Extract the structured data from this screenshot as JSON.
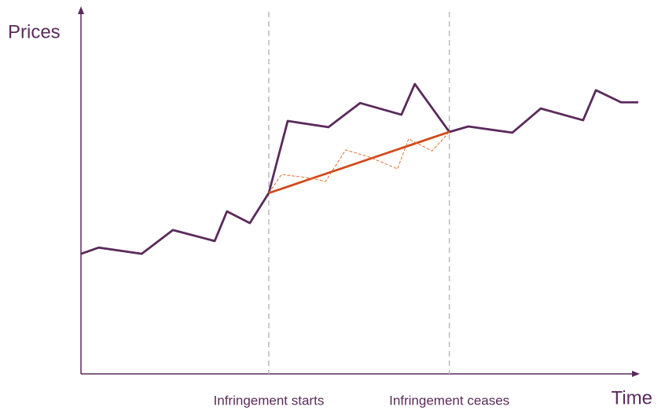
{
  "chart_data": {
    "type": "line",
    "xlabel": "Time",
    "ylabel": "Prices",
    "xlim": [
      0,
      100
    ],
    "ylim": [
      0,
      100
    ],
    "annotations": [
      {
        "x": 33.7,
        "label": "Infringement starts"
      },
      {
        "x": 66.1,
        "label": "Infringement ceases"
      }
    ],
    "annotation_color": "#bbbbbb",
    "series": [
      {
        "color": "#5b2a5b",
        "x": [
          0,
          3.2,
          10.9,
          16.5,
          24.0,
          26.2,
          30.3,
          33.7,
          37.1,
          44.4,
          50.1,
          57.5,
          59.9,
          66.1,
          69.5,
          77.4,
          82.5,
          90.1,
          92.4,
          96.9,
          100
        ],
        "values": [
          32.8,
          34.5,
          32.8,
          39.3,
          36.3,
          44.4,
          41.2,
          49.4,
          69.1,
          67.4,
          74.0,
          70.8,
          79.2,
          66.1,
          67.6,
          65.9,
          72.5,
          69.3,
          77.5,
          74.2,
          74.2
        ]
      },
      {
        "color": "#d24a1a",
        "x": [
          33.7,
          66.1
        ],
        "values": [
          49.4,
          66.1
        ]
      },
      {
        "color": "#e07030",
        "dashed": true,
        "x": [
          33.7,
          36.0,
          40.5,
          43.9,
          47.5,
          51.8,
          56.8,
          58.8,
          63.0,
          66.1
        ],
        "values": [
          49.4,
          54.5,
          53.6,
          52.6,
          61.2,
          59.2,
          56.0,
          64.2,
          60.9,
          66.1
        ]
      }
    ]
  }
}
